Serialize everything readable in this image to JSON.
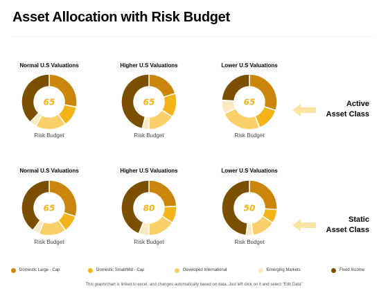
{
  "title": "Asset Allocation with Risk Budget",
  "row_labels": {
    "active": [
      "Active",
      "Asset Class"
    ],
    "static": [
      "Static",
      "Asset Class"
    ]
  },
  "legend": [
    {
      "label": "Domestic Large - Cap",
      "color": "#c9860a"
    },
    {
      "label": "Domestic Small/Mid - Cap",
      "color": "#f2b418"
    },
    {
      "label": "Developed International",
      "color": "#fbd06b"
    },
    {
      "label": "Emerging Markets",
      "color": "#fde9c2"
    },
    {
      "label": "Fixed Income",
      "color": "#7a5000"
    }
  ],
  "footnote": "This graph/chart is linked to excel, and changes automatically based on data. Just left click on it and select \"Edit Data\"",
  "chart_data": [
    {
      "type": "pie",
      "variant": "donut",
      "row": "active",
      "title": "Normal U.S Valuations",
      "center_value": "65",
      "center_color": "#f2b418",
      "footer": "Risk Budget",
      "categories": [
        "Domestic Large - Cap",
        "Domestic Small/Mid - Cap",
        "Developed International",
        "Emerging Markets",
        "Fixed Income"
      ],
      "values": [
        28,
        12,
        18,
        4,
        38
      ]
    },
    {
      "type": "pie",
      "variant": "donut",
      "row": "active",
      "title": "Higher U.S Valuations",
      "center_value": "65",
      "center_color": "#f2b418",
      "footer": "Risk Budget",
      "categories": [
        "Domestic Large - Cap",
        "Domestic Small/Mid - Cap",
        "Developed International",
        "Emerging Markets",
        "Fixed Income"
      ],
      "values": [
        20,
        14,
        16,
        4,
        46
      ]
    },
    {
      "type": "pie",
      "variant": "donut",
      "row": "active",
      "title": "Lower U.S Valuations",
      "center_value": "65",
      "center_color": "#f2b418",
      "footer": "Risk Budget",
      "categories": [
        "Domestic Large - Cap",
        "Domestic Small/Mid - Cap",
        "Developed International",
        "Emerging Markets",
        "Fixed Income"
      ],
      "values": [
        30,
        14,
        24,
        8,
        24
      ]
    },
    {
      "type": "pie",
      "variant": "donut",
      "row": "static",
      "title": "Normal U.S Valuations",
      "center_value": "65",
      "center_color": "#f2b418",
      "footer": "Risk Budget",
      "categories": [
        "Domestic Large - Cap",
        "Domestic Small/Mid - Cap",
        "Developed International",
        "Emerging Markets",
        "Fixed Income"
      ],
      "values": [
        30,
        10,
        16,
        4,
        40
      ]
    },
    {
      "type": "pie",
      "variant": "donut",
      "row": "static",
      "title": "Higher U.S Valuations",
      "center_value": "80",
      "center_color": "#f2b418",
      "footer": "Risk Budget",
      "categories": [
        "Domestic Large - Cap",
        "Domestic Small/Mid - Cap",
        "Developed International",
        "Emerging Markets",
        "Fixed Income"
      ],
      "values": [
        24,
        10,
        16,
        6,
        44
      ]
    },
    {
      "type": "pie",
      "variant": "donut",
      "row": "static",
      "title": "Lower U.S Valuations",
      "center_value": "50",
      "center_color": "#f2b418",
      "footer": "Risk Budget",
      "categories": [
        "Domestic Large - Cap",
        "Domestic Small/Mid - Cap",
        "Developed International",
        "Emerging Markets",
        "Fixed Income"
      ],
      "values": [
        26,
        8,
        14,
        4,
        48
      ]
    }
  ]
}
